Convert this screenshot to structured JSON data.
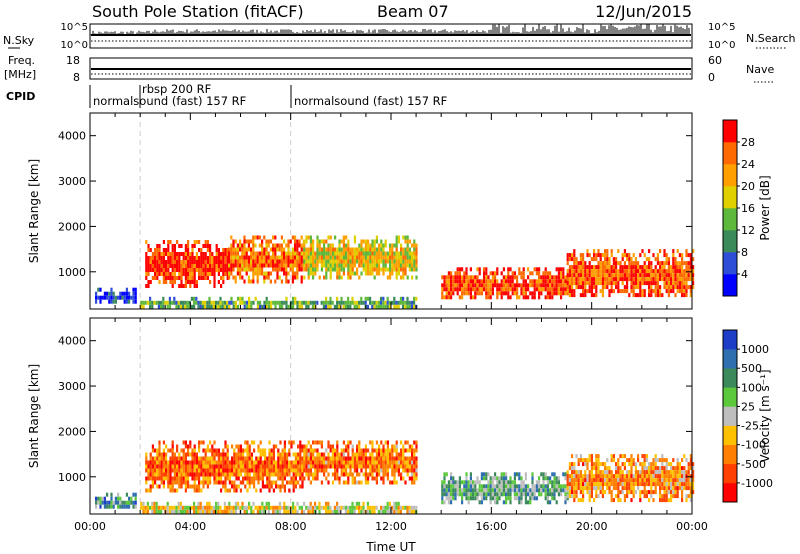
{
  "header": {
    "station": "South Pole Station (fitACF)",
    "beam": "Beam 07",
    "date": "12/Jun/2015"
  },
  "top_panels": {
    "nsky_label": "N.Sky",
    "nsky_ticks": [
      "10^5",
      "10^0"
    ],
    "nsearch_label": "N.Search",
    "nsearch_ticks": [
      "10^5",
      "10^0"
    ],
    "freq_label_1": "Freq.",
    "freq_label_2": "[MHz]",
    "freq_ticks": [
      "18",
      "8"
    ],
    "nave_label": "Nave",
    "nave_ticks": [
      "60",
      "0"
    ],
    "cpid_label": "CPID",
    "cpid_segments": [
      {
        "name": "normalsound (fast) 157 RF",
        "start_hour": 0,
        "end_hour": 8
      },
      {
        "name": "rbsp 200 RF",
        "start_hour": 2,
        "end_hour": 8
      },
      {
        "name": "normalsound (fast) 157 RF",
        "start_hour": 8,
        "end_hour": 24
      }
    ]
  },
  "chart_data": [
    {
      "type": "heatmap",
      "name": "power",
      "ylabel": "Slant Range [km]",
      "xlabel": "",
      "xlim": [
        0,
        24
      ],
      "ylim": [
        180,
        4500
      ],
      "y_ticks": [
        "1000",
        "2000",
        "3000",
        "4000"
      ],
      "colorbar": {
        "label": "Power [dB]",
        "ticks": [
          "4",
          "8",
          "12",
          "16",
          "20",
          "24",
          "28"
        ],
        "colors": [
          "#0000ff",
          "#2e4ed8",
          "#3a8a5a",
          "#5db83c",
          "#e0d000",
          "#ffa000",
          "#ff6a00",
          "#ff0000"
        ]
      },
      "regions": [
        {
          "x": [
            0.2,
            1.8
          ],
          "y": [
            300,
            650
          ],
          "level": 0.15
        },
        {
          "x": [
            2.2,
            5.5
          ],
          "y": [
            700,
            1700
          ],
          "level": 0.92
        },
        {
          "x": [
            5.5,
            8.5
          ],
          "y": [
            800,
            1800
          ],
          "level": 0.78
        },
        {
          "x": [
            8.5,
            13.0
          ],
          "y": [
            900,
            1800
          ],
          "level": 0.6
        },
        {
          "x": [
            14.0,
            19.0
          ],
          "y": [
            400,
            1100
          ],
          "level": 0.88
        },
        {
          "x": [
            19.0,
            24.0
          ],
          "y": [
            450,
            1500
          ],
          "level": 0.84
        },
        {
          "x": [
            2.0,
            13.0
          ],
          "y": [
            200,
            450
          ],
          "level": 0.4
        }
      ]
    },
    {
      "type": "heatmap",
      "name": "velocity",
      "ylabel": "Slant Range [km]",
      "xlabel": "Time UT",
      "xlim": [
        0,
        24
      ],
      "ylim": [
        180,
        4500
      ],
      "y_ticks": [
        "1000",
        "2000",
        "3000",
        "4000"
      ],
      "x_ticks": [
        "00:00",
        "04:00",
        "08:00",
        "12:00",
        "16:00",
        "20:00",
        "00:00"
      ],
      "colorbar": {
        "label": "Velocity [m s⁻¹]",
        "ticks": [
          "1000",
          "500",
          "100",
          "25",
          "-25",
          "-100",
          "-500",
          "-1000"
        ],
        "colors": [
          "#1e3ec8",
          "#2f6fb0",
          "#3c8a5c",
          "#5cc83c",
          "#bebebe",
          "#ffc000",
          "#ff8000",
          "#ff4000",
          "#ff0000"
        ]
      },
      "regions": [
        {
          "x": [
            0.2,
            1.8
          ],
          "y": [
            300,
            650
          ],
          "level": 0.3
        },
        {
          "x": [
            2.2,
            8.5
          ],
          "y": [
            700,
            1800
          ],
          "level": 0.78
        },
        {
          "x": [
            8.5,
            13.0
          ],
          "y": [
            900,
            1800
          ],
          "level": 0.74
        },
        {
          "x": [
            14.0,
            19.0
          ],
          "y": [
            400,
            1100
          ],
          "level": 0.35
        },
        {
          "x": [
            19.0,
            24.0
          ],
          "y": [
            450,
            1500
          ],
          "level": 0.7
        },
        {
          "x": [
            2.0,
            13.0
          ],
          "y": [
            200,
            450
          ],
          "level": 0.55
        }
      ]
    }
  ]
}
